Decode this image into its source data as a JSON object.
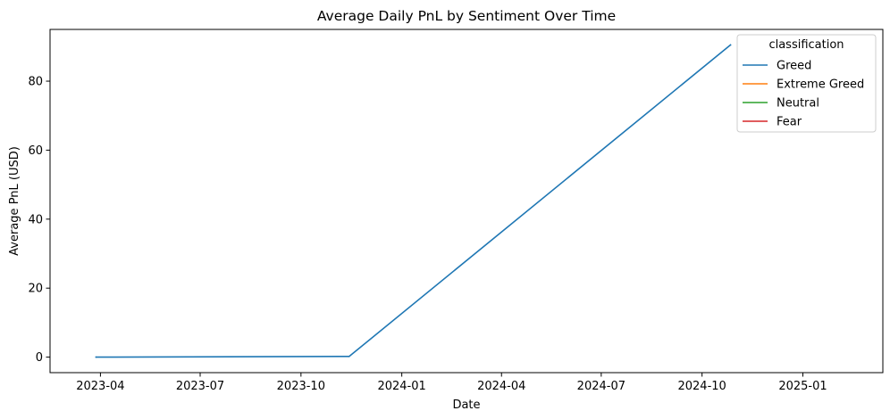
{
  "chart_data": {
    "type": "line",
    "title": "Average Daily PnL by Sentiment Over Time",
    "xlabel": "Date",
    "ylabel": "Average PnL (USD)",
    "xlim": [
      "2023-02-14",
      "2025-03-15"
    ],
    "ylim": [
      -4.5,
      95
    ],
    "x_ticks": [
      "2023-04",
      "2023-07",
      "2023-10",
      "2024-01",
      "2024-04",
      "2024-07",
      "2024-10",
      "2025-01"
    ],
    "y_ticks": [
      0,
      20,
      40,
      60,
      80
    ],
    "grid": false,
    "legend": {
      "title": "classification",
      "position": "top-right"
    },
    "series": [
      {
        "name": "Greed",
        "color": "#1f77b4",
        "x": [
          "2023-03-28",
          "2023-11-14",
          "2024-10-27"
        ],
        "y": [
          0.0,
          0.2,
          90.5
        ]
      },
      {
        "name": "Extreme Greed",
        "color": "#ff7f0e",
        "x": [],
        "y": []
      },
      {
        "name": "Neutral",
        "color": "#2ca02c",
        "x": [],
        "y": []
      },
      {
        "name": "Fear",
        "color": "#d62728",
        "x": [],
        "y": []
      }
    ]
  }
}
